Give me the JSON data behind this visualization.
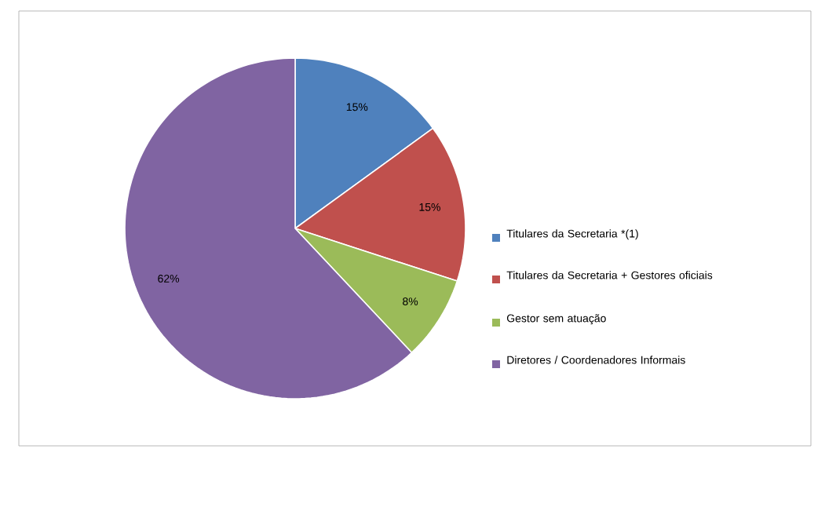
{
  "chart_data": {
    "type": "pie",
    "categories": [
      "Titulares da Secretaria  *(1)",
      "Titulares da Secretaria  + Gestores oficiais",
      "Gestor sem atuação",
      "Diretores / Coordenadores Informais"
    ],
    "values": [
      15,
      15,
      8,
      62
    ],
    "colors": [
      "#4f81bd",
      "#c0504d",
      "#9bbb59",
      "#8064a2"
    ],
    "value_labels": [
      "15%",
      "15%",
      "8%",
      "62%"
    ],
    "legend": "right"
  }
}
